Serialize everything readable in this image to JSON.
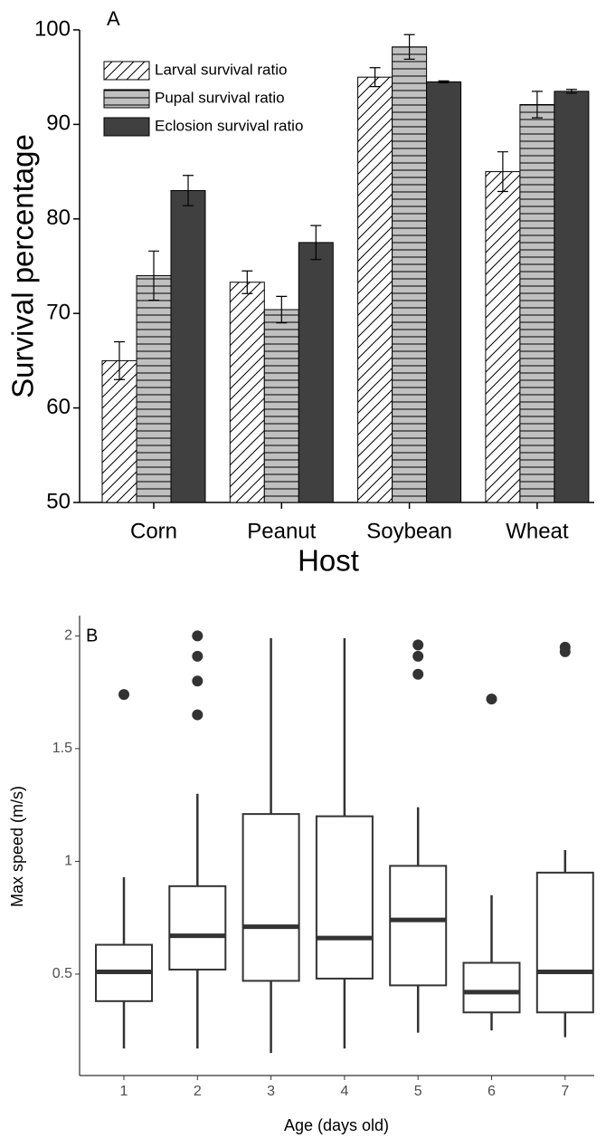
{
  "chart_data": [
    {
      "type": "bar",
      "panel_label": "A",
      "ylabel": "Survival percentage",
      "xlabel": "Host",
      "categories": [
        "Corn",
        "Peanut",
        "Soybean",
        "Wheat"
      ],
      "series": [
        {
          "name": "Larval survival ratio",
          "color": "#ffffff",
          "pattern": "diagonal",
          "values": [
            65.0,
            73.3,
            95.0,
            85.0
          ],
          "errors": [
            2.0,
            1.2,
            1.0,
            2.1
          ]
        },
        {
          "name": "Pupal survival ratio",
          "color": "#c0c0c0",
          "pattern": "horizontal",
          "values": [
            74.0,
            70.4,
            98.2,
            92.1
          ],
          "errors": [
            2.6,
            1.4,
            1.3,
            1.4
          ]
        },
        {
          "name": "Eclosion survival ratio",
          "color": "#404040",
          "pattern": null,
          "values": [
            83.0,
            77.5,
            94.5,
            93.5
          ],
          "errors": [
            1.6,
            1.8,
            0.1,
            0.2
          ]
        }
      ],
      "ylim": [
        50,
        100
      ],
      "yticks": [
        50,
        60,
        70,
        80,
        90,
        100
      ],
      "legend": "upper left"
    },
    {
      "type": "box",
      "panel_label": "B",
      "ylabel": "Max speed (m/s)",
      "xlabel": "Age (days old)",
      "categories": [
        "1",
        "2",
        "3",
        "4",
        "5",
        "6",
        "7"
      ],
      "boxes": [
        {
          "min": 0.17,
          "q1": 0.38,
          "median": 0.51,
          "q3": 0.63,
          "max": 0.93,
          "outliers": [
            1.74
          ]
        },
        {
          "min": 0.17,
          "q1": 0.52,
          "median": 0.67,
          "q3": 0.89,
          "max": 1.3,
          "outliers": [
            1.65,
            1.8,
            1.91,
            2.0
          ]
        },
        {
          "min": 0.15,
          "q1": 0.47,
          "median": 0.71,
          "q3": 1.21,
          "max": 1.99,
          "outliers": []
        },
        {
          "min": 0.17,
          "q1": 0.48,
          "median": 0.66,
          "q3": 1.2,
          "max": 1.99,
          "outliers": []
        },
        {
          "min": 0.24,
          "q1": 0.45,
          "median": 0.74,
          "q3": 0.98,
          "max": 1.24,
          "outliers": [
            1.83,
            1.91,
            1.96
          ]
        },
        {
          "min": 0.25,
          "q1": 0.33,
          "median": 0.42,
          "q3": 0.55,
          "max": 0.85,
          "outliers": [
            1.72
          ]
        },
        {
          "min": 0.22,
          "q1": 0.33,
          "median": 0.51,
          "q3": 0.95,
          "max": 1.05,
          "outliers": [
            1.93,
            1.95
          ]
        }
      ],
      "color": "#333333",
      "ylim": [
        0.05,
        2.09
      ],
      "yticks": [
        0.5,
        1.0,
        1.5,
        2.0
      ]
    }
  ]
}
